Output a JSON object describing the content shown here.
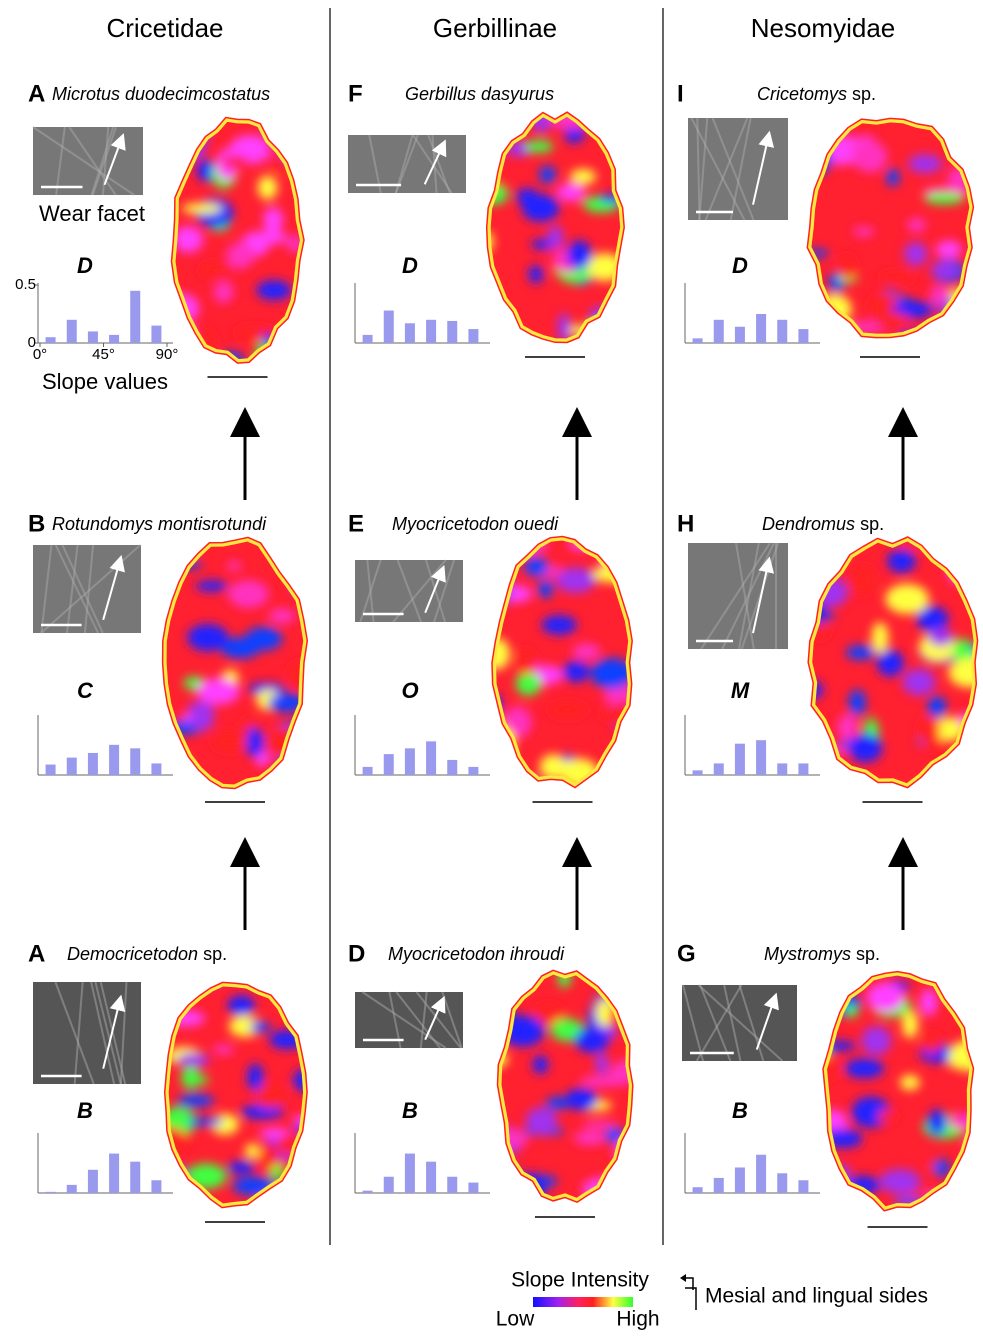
{
  "columns": [
    {
      "title": "Cricetidae",
      "panels": [
        {
          "letter": "A",
          "species": "Microtus duodecimcostatus",
          "code": "D",
          "histogram": [
            0.05,
            0.2,
            0.1,
            0.07,
            0.45,
            0.15
          ]
        },
        {
          "letter": "B",
          "species": "Rotundomys montisrotundi",
          "code": "C",
          "histogram": [
            0.09,
            0.15,
            0.19,
            0.26,
            0.23,
            0.1
          ]
        },
        {
          "letter": "A",
          "species": "Democricetodon",
          "suffix": "sp.",
          "code": "B",
          "histogram": [
            0.01,
            0.07,
            0.2,
            0.34,
            0.27,
            0.11
          ]
        }
      ]
    },
    {
      "title": "Gerbillinae",
      "panels": [
        {
          "letter": "F",
          "species": "Gerbillus dasyurus",
          "code": "D",
          "histogram": [
            0.07,
            0.28,
            0.17,
            0.2,
            0.19,
            0.12
          ]
        },
        {
          "letter": "E",
          "species": "Myocricetodon ouedi",
          "code": "O",
          "histogram": [
            0.07,
            0.18,
            0.23,
            0.29,
            0.13,
            0.07
          ]
        },
        {
          "letter": "D",
          "species": "Myocricetodon ihroudi",
          "code": "B",
          "histogram": [
            0.02,
            0.14,
            0.34,
            0.27,
            0.14,
            0.09
          ]
        }
      ]
    },
    {
      "title": "Nesomyidae",
      "panels": [
        {
          "letter": "I",
          "species": "Cricetomys",
          "suffix": "sp.",
          "code": "D",
          "histogram": [
            0.04,
            0.2,
            0.14,
            0.25,
            0.2,
            0.12
          ]
        },
        {
          "letter": "H",
          "species": "Dendromus",
          "suffix": "sp.",
          "code": "M",
          "histogram": [
            0.04,
            0.1,
            0.27,
            0.3,
            0.1,
            0.1
          ]
        },
        {
          "letter": "G",
          "species": "Mystromys",
          "suffix": "sp.",
          "code": "B",
          "histogram": [
            0.05,
            0.13,
            0.22,
            0.33,
            0.17,
            0.11
          ]
        }
      ]
    }
  ],
  "histogram_axis": {
    "ylim": [
      0,
      0.5
    ],
    "yticks": [
      0,
      0.5
    ],
    "xlim": [
      0,
      90
    ],
    "xticks": [
      {
        "value": 0,
        "label": "0°"
      },
      {
        "value": 45,
        "label": "45°"
      },
      {
        "value": 90,
        "label": "90°"
      }
    ],
    "color": "#9999ee"
  },
  "annotations": {
    "wear_facet": "Wear facet",
    "slope_values": "Slope values"
  },
  "legend": {
    "title": "Slope Intensity",
    "low": "Low",
    "high": "High",
    "note": "Mesial and lingual sides"
  }
}
